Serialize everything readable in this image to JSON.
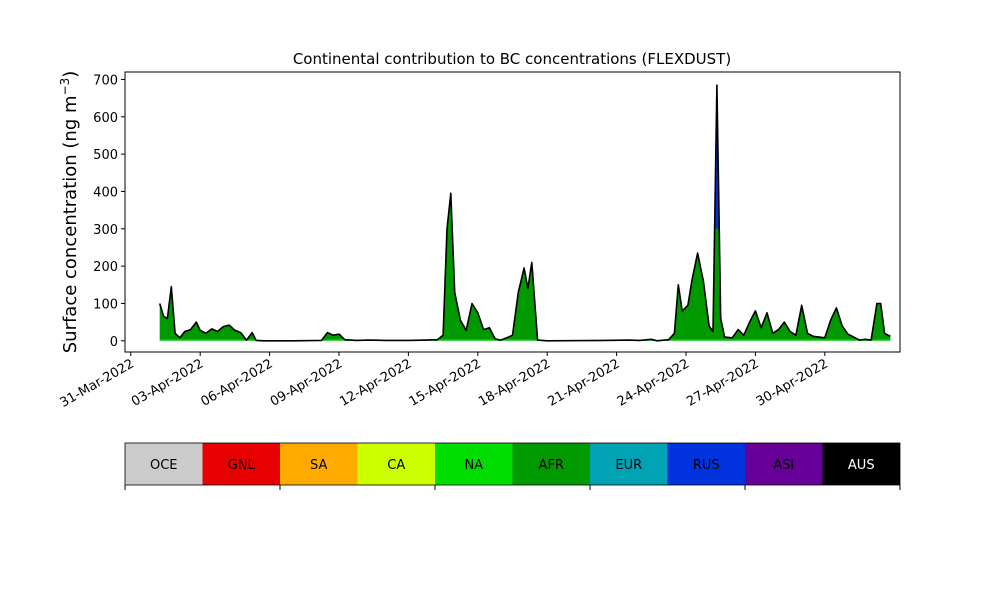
{
  "chart_data": {
    "type": "area",
    "title": "Continental contribution to BC concentrations (FLEXDUST)",
    "ylabel": "Surface concentration (ng m",
    "ylabel_unit_exponent": "−3",
    "ylabel_close": ")",
    "xlabel": "",
    "ylim": [
      -30,
      720
    ],
    "yticks": [
      0,
      100,
      200,
      300,
      400,
      500,
      600,
      700
    ],
    "xlim": [
      "2022-03-30T18:00",
      "2022-05-03T06:00"
    ],
    "xticks": [
      "2022-03-31",
      "2022-04-03",
      "2022-04-06",
      "2022-04-09",
      "2022-04-12",
      "2022-04-15",
      "2022-04-18",
      "2022-04-21",
      "2022-04-24",
      "2022-04-27",
      "2022-04-30"
    ],
    "xtick_labels": [
      "31-Mar-2022",
      "03-Apr-2022",
      "06-Apr-2022",
      "09-Apr-2022",
      "12-Apr-2022",
      "15-Apr-2022",
      "18-Apr-2022",
      "21-Apr-2022",
      "24-Apr-2022",
      "27-Apr-2022",
      "30-Apr-2022"
    ],
    "grid": false,
    "legend": "colorbar-below",
    "series_order": [
      "OCE",
      "GNL",
      "SA",
      "CA",
      "NA",
      "AFR",
      "EUR",
      "RUS",
      "ASI",
      "AUS"
    ],
    "colors": {
      "OCE": "#cccccc",
      "GNL": "#e60000",
      "SA": "#ffaa00",
      "CA": "#ccff00",
      "NA": "#00dd00",
      "AFR": "#009900",
      "EUR": "#00a3b3",
      "RUS": "#0033dd",
      "ASI": "#660099",
      "AUS": "#000000"
    },
    "total": [
      [
        "2022-04-01T06:00",
        100
      ],
      [
        "2022-04-01T10:00",
        65
      ],
      [
        "2022-04-01T14:00",
        60
      ],
      [
        "2022-04-01T18:00",
        145
      ],
      [
        "2022-04-01T22:00",
        20
      ],
      [
        "2022-04-02T03:00",
        8
      ],
      [
        "2022-04-02T08:00",
        25
      ],
      [
        "2022-04-02T14:00",
        30
      ],
      [
        "2022-04-02T20:00",
        50
      ],
      [
        "2022-04-03T00:00",
        28
      ],
      [
        "2022-04-03T06:00",
        20
      ],
      [
        "2022-04-03T12:00",
        32
      ],
      [
        "2022-04-03T18:00",
        25
      ],
      [
        "2022-04-04T00:00",
        38
      ],
      [
        "2022-04-04T06:00",
        42
      ],
      [
        "2022-04-04T12:00",
        28
      ],
      [
        "2022-04-04T18:00",
        22
      ],
      [
        "2022-04-05T00:00",
        2
      ],
      [
        "2022-04-05T06:00",
        22
      ],
      [
        "2022-04-05T10:00",
        1
      ],
      [
        "2022-04-05T18:00",
        0
      ],
      [
        "2022-04-07T00:00",
        0
      ],
      [
        "2022-04-08T06:00",
        1
      ],
      [
        "2022-04-08T12:00",
        22
      ],
      [
        "2022-04-08T18:00",
        15
      ],
      [
        "2022-04-09T00:00",
        18
      ],
      [
        "2022-04-09T06:00",
        3
      ],
      [
        "2022-04-09T18:00",
        1
      ],
      [
        "2022-04-10T06:00",
        2
      ],
      [
        "2022-04-11T00:00",
        1
      ],
      [
        "2022-04-12T00:00",
        1
      ],
      [
        "2022-04-12T18:00",
        2
      ],
      [
        "2022-04-13T06:00",
        3
      ],
      [
        "2022-04-13T12:00",
        15
      ],
      [
        "2022-04-13T16:00",
        300
      ],
      [
        "2022-04-13T20:00",
        395
      ],
      [
        "2022-04-14T00:00",
        130
      ],
      [
        "2022-04-14T06:00",
        55
      ],
      [
        "2022-04-14T12:00",
        28
      ],
      [
        "2022-04-14T18:00",
        100
      ],
      [
        "2022-04-15T00:00",
        75
      ],
      [
        "2022-04-15T06:00",
        30
      ],
      [
        "2022-04-15T12:00",
        35
      ],
      [
        "2022-04-15T18:00",
        5
      ],
      [
        "2022-04-16T00:00",
        2
      ],
      [
        "2022-04-16T06:00",
        8
      ],
      [
        "2022-04-16T12:00",
        15
      ],
      [
        "2022-04-16T18:00",
        130
      ],
      [
        "2022-04-17T00:00",
        195
      ],
      [
        "2022-04-17T04:00",
        140
      ],
      [
        "2022-04-17T08:00",
        210
      ],
      [
        "2022-04-17T14:00",
        2
      ],
      [
        "2022-04-18T00:00",
        0
      ],
      [
        "2022-04-20T12:00",
        1
      ],
      [
        "2022-04-21T12:00",
        2
      ],
      [
        "2022-04-22T00:00",
        1
      ],
      [
        "2022-04-22T12:00",
        4
      ],
      [
        "2022-04-22T18:00",
        0
      ],
      [
        "2022-04-23T06:00",
        3
      ],
      [
        "2022-04-23T12:00",
        20
      ],
      [
        "2022-04-23T16:00",
        150
      ],
      [
        "2022-04-23T20:00",
        80
      ],
      [
        "2022-04-24T02:00",
        95
      ],
      [
        "2022-04-24T06:00",
        160
      ],
      [
        "2022-04-24T12:00",
        235
      ],
      [
        "2022-04-24T18:00",
        160
      ],
      [
        "2022-04-25T00:00",
        40
      ],
      [
        "2022-04-25T04:00",
        25
      ],
      [
        "2022-04-25T08:00",
        685
      ],
      [
        "2022-04-25T12:00",
        60
      ],
      [
        "2022-04-25T16:00",
        10
      ],
      [
        "2022-04-26T00:00",
        8
      ],
      [
        "2022-04-26T06:00",
        30
      ],
      [
        "2022-04-26T12:00",
        15
      ],
      [
        "2022-04-26T18:00",
        50
      ],
      [
        "2022-04-27T00:00",
        80
      ],
      [
        "2022-04-27T06:00",
        35
      ],
      [
        "2022-04-27T12:00",
        75
      ],
      [
        "2022-04-27T18:00",
        20
      ],
      [
        "2022-04-28T00:00",
        30
      ],
      [
        "2022-04-28T06:00",
        50
      ],
      [
        "2022-04-28T12:00",
        25
      ],
      [
        "2022-04-28T18:00",
        15
      ],
      [
        "2022-04-29T00:00",
        95
      ],
      [
        "2022-04-29T06:00",
        20
      ],
      [
        "2022-04-29T12:00",
        12
      ],
      [
        "2022-04-29T18:00",
        10
      ],
      [
        "2022-04-30T00:00",
        8
      ],
      [
        "2022-04-30T06:00",
        55
      ],
      [
        "2022-04-30T12:00",
        88
      ],
      [
        "2022-04-30T18:00",
        40
      ],
      [
        "2022-05-01T00:00",
        18
      ],
      [
        "2022-05-01T06:00",
        10
      ],
      [
        "2022-05-01T12:00",
        2
      ],
      [
        "2022-05-01T18:00",
        4
      ],
      [
        "2022-05-02T00:00",
        2
      ],
      [
        "2022-05-02T06:00",
        100
      ],
      [
        "2022-05-02T10:00",
        100
      ],
      [
        "2022-05-02T14:00",
        20
      ],
      [
        "2022-05-02T20:00",
        12
      ]
    ]
  },
  "colorbar": {
    "labels": [
      "OCE",
      "GNL",
      "SA",
      "CA",
      "NA",
      "AFR",
      "EUR",
      "RUS",
      "ASI",
      "AUS"
    ]
  }
}
